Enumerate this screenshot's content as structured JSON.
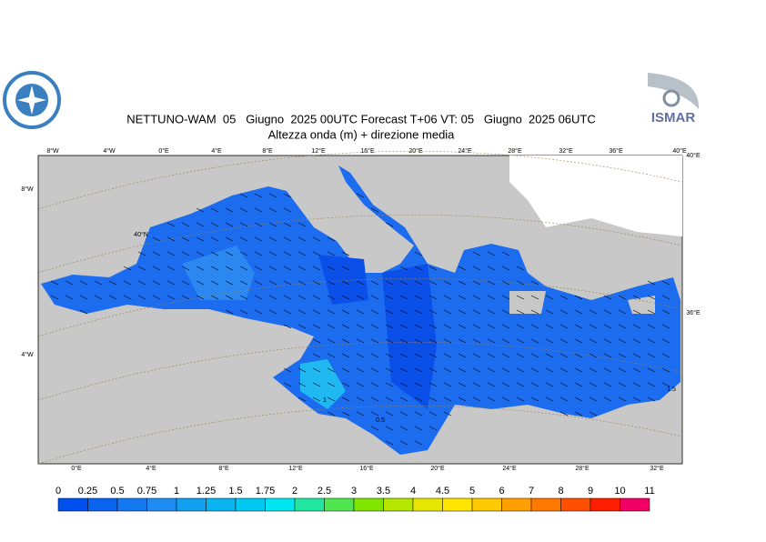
{
  "header": {
    "title": "NETTUNO-WAM  05   Giugno  2025 00UTC Forecast T+06 VT: 05   Giugno  2025 06UTC",
    "subtitle": "Altezza onda (m) + direzione media",
    "logo_text": "ISMAR"
  },
  "graticule": {
    "top": [
      "8°W",
      "4°W",
      "0°E",
      "4°E",
      "8°E",
      "12°E",
      "16°E",
      "20°E",
      "24°E",
      "28°E",
      "32°E",
      "36°E",
      "40°E"
    ],
    "bottom": [
      "0°E",
      "4°E",
      "8°E",
      "12°E",
      "16°E",
      "20°E",
      "24°E",
      "28°E",
      "32°E"
    ],
    "left": [
      "8°W",
      "40°N",
      "4°W"
    ],
    "right": [
      "40°E",
      "36°E"
    ]
  },
  "contour_labels": [
    "0.5",
    "1",
    "1.5"
  ],
  "legend": {
    "levels": [
      0,
      0.25,
      0.5,
      0.75,
      1,
      1.25,
      1.5,
      1.75,
      2,
      2.5,
      3,
      3.5,
      4,
      4.5,
      5,
      6,
      7,
      8,
      9,
      10,
      11
    ],
    "colors": [
      "#0050f0",
      "#0a64f0",
      "#1478f0",
      "#1e8cf0",
      "#14a0f0",
      "#0ab4f0",
      "#00c8f0",
      "#00e6f0",
      "#20e6a0",
      "#50e650",
      "#80e600",
      "#b4e600",
      "#e6e600",
      "#ffe600",
      "#ffc800",
      "#ffa000",
      "#ff7800",
      "#ff5000",
      "#ff1e00",
      "#f00064"
    ]
  }
}
